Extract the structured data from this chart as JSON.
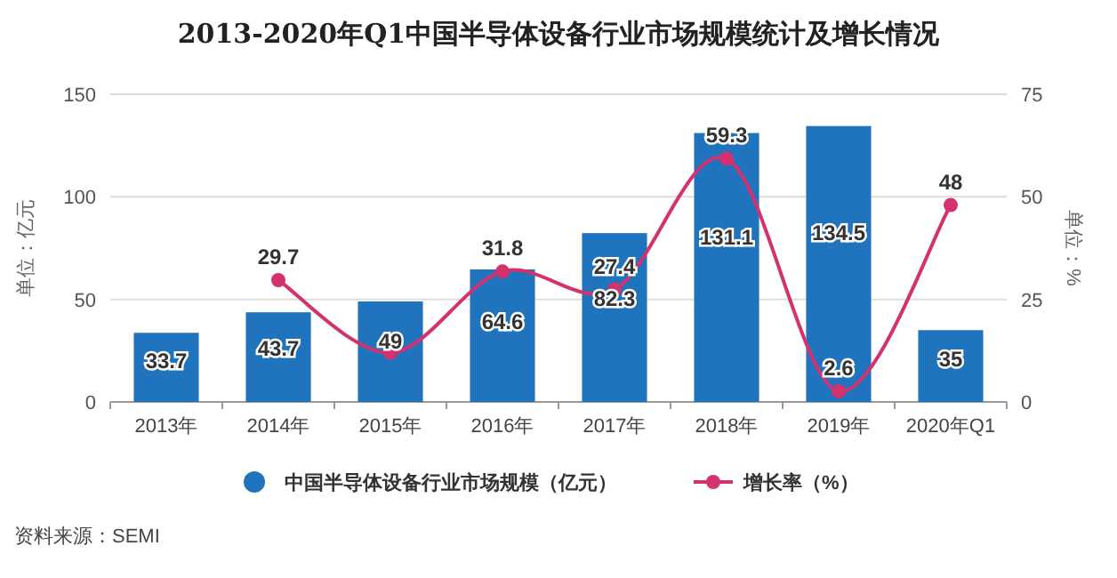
{
  "chart_data": {
    "type": "bar",
    "title": "2013-2020年Q1中国半导体设备行业市场规模统计及增长情况",
    "categories": [
      "2013年",
      "2014年",
      "2015年",
      "2016年",
      "2017年",
      "2018年",
      "2019年",
      "2020年Q1"
    ],
    "series": [
      {
        "name": "中国半导体设备行业市场规模（亿元）",
        "color": "#1f74bd",
        "values": [
          33.7,
          43.7,
          49,
          64.6,
          82.3,
          131.1,
          134.5,
          35
        ],
        "value_labels": [
          "33.7",
          "43.7",
          "49",
          "64.6",
          "82.3",
          "131.1",
          "134.5",
          "35"
        ]
      },
      {
        "name": "增长率（%）",
        "type": "line",
        "axis": "y2",
        "color": "#d4316f",
        "marker": "circle",
        "values": [
          null,
          29.7,
          12,
          31.8,
          27.4,
          59.3,
          2.6,
          48
        ],
        "value_labels": [
          null,
          "29.7",
          null,
          "31.8",
          "27.4",
          "59.3",
          "2.6",
          "48"
        ]
      }
    ],
    "ylabel": "单位：亿元",
    "y2label": "单位：%",
    "ylim": [
      0,
      150
    ],
    "yticks": [
      0,
      50,
      100,
      150
    ],
    "y2lim": [
      0,
      75
    ],
    "y2ticks": [
      0,
      25,
      50,
      75
    ],
    "grid": "y",
    "legend": "bottom",
    "annotations": [
      "资料来源：SEMI"
    ]
  }
}
